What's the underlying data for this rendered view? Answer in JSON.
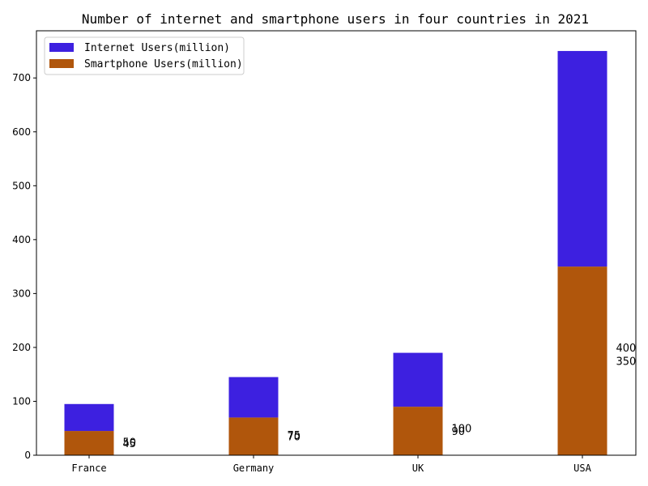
{
  "chart_data": {
    "type": "bar",
    "stacked": true,
    "title": "Number of internet and smartphone users in four countries in 2021",
    "xlabel": "",
    "ylabel": "",
    "categories": [
      "France",
      "Germany",
      "UK",
      "USA"
    ],
    "series": [
      {
        "name": "Smartphone Users(million)",
        "values": [
          45,
          70,
          90,
          350
        ],
        "color": "#b0560c"
      },
      {
        "name": "Internet Users(million)",
        "values": [
          50,
          75,
          100,
          400
        ],
        "color": "#3d20e0"
      }
    ],
    "ylim": [
      0,
      787.5
    ],
    "yticks": [
      0,
      100,
      200,
      300,
      400,
      500,
      600,
      700
    ],
    "grid": false,
    "legend_position": "top-left"
  }
}
